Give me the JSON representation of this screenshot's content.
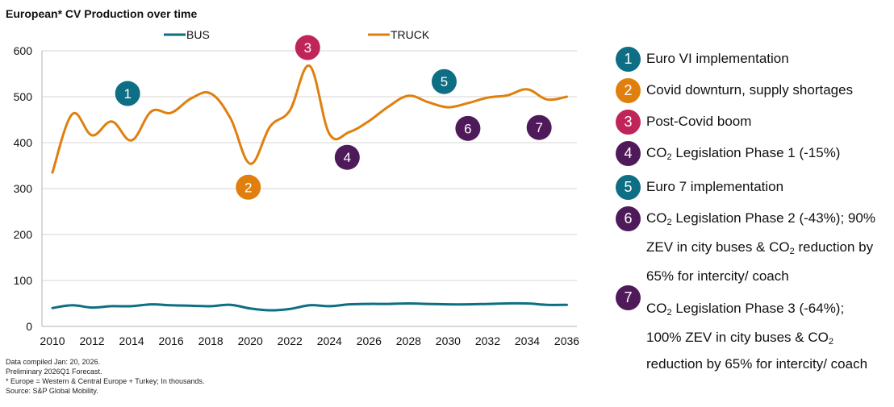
{
  "chart_data": {
    "type": "line",
    "title": "European* CV Production over time",
    "xlabel": "",
    "ylabel": "",
    "ylim": [
      0,
      600
    ],
    "yticks": [
      0,
      100,
      200,
      300,
      400,
      500,
      600
    ],
    "xlim": [
      2010,
      2036
    ],
    "xticks": [
      2010,
      2012,
      2014,
      2016,
      2018,
      2020,
      2022,
      2024,
      2026,
      2028,
      2030,
      2032,
      2034,
      2036
    ],
    "grid": true,
    "legend_position": "top",
    "x": [
      2010,
      2011,
      2012,
      2013,
      2014,
      2015,
      2016,
      2017,
      2018,
      2019,
      2020,
      2021,
      2022,
      2023,
      2024,
      2025,
      2026,
      2027,
      2028,
      2029,
      2030,
      2031,
      2032,
      2033,
      2034,
      2035,
      2036
    ],
    "series": [
      {
        "name": "BUS",
        "color": "#0e6e84",
        "values": [
          40,
          46,
          41,
          44,
          44,
          48,
          46,
          45,
          44,
          47,
          39,
          35,
          38,
          46,
          44,
          48,
          49,
          49,
          50,
          49,
          48,
          48,
          49,
          50,
          50,
          47,
          47
        ]
      },
      {
        "name": "TRUCK",
        "color": "#e07f0d",
        "values": [
          335,
          462,
          416,
          446,
          405,
          468,
          465,
          496,
          507,
          453,
          354,
          435,
          470,
          567,
          419,
          423,
          447,
          479,
          502,
          488,
          477,
          486,
          498,
          503,
          516,
          494,
          500
        ]
      }
    ],
    "annotations": [
      {
        "id": "1",
        "x": 2013.8,
        "y": 507,
        "color": "#0e6e84"
      },
      {
        "id": "2",
        "x": 2019.9,
        "y": 303,
        "color": "#e07f0d"
      },
      {
        "id": "3",
        "x": 2022.9,
        "y": 607,
        "color": "#c0255a"
      },
      {
        "id": "4",
        "x": 2024.9,
        "y": 368,
        "color": "#4e1a5a"
      },
      {
        "id": "5",
        "x": 2029.8,
        "y": 533,
        "color": "#0e6e84"
      },
      {
        "id": "6",
        "x": 2031.0,
        "y": 431,
        "color": "#4e1a5a"
      },
      {
        "id": "7",
        "x": 2034.6,
        "y": 433,
        "color": "#4e1a5a"
      }
    ]
  },
  "legend_notes": [
    {
      "id": "1",
      "color": "#0e6e84",
      "lines": [
        "Euro VI implementation"
      ]
    },
    {
      "id": "2",
      "color": "#e07f0d",
      "lines": [
        "Covid downturn, supply shortages"
      ]
    },
    {
      "id": "3",
      "color": "#c0255a",
      "lines": [
        "Post-Covid boom"
      ]
    },
    {
      "id": "4",
      "color": "#4e1a5a",
      "lines": [
        "CO|2| Legislation Phase 1 (-15%)"
      ]
    },
    {
      "id": "5",
      "color": "#0e6e84",
      "lines": [
        "Euro 7 implementation"
      ]
    },
    {
      "id": "6",
      "color": "#4e1a5a",
      "lines": [
        "CO|2| Legislation Phase 2 (-43%); 90%",
        "ZEV in city buses & CO|2| reduction by",
        "65% for intercity/ coach"
      ]
    },
    {
      "id": "7",
      "color": "#4e1a5a",
      "lines": [
        "CO|2| Legislation Phase 3 (-64%);",
        "100% ZEV in city buses & CO|2|",
        "reduction by 65% for intercity/ coach"
      ]
    }
  ],
  "footnotes": [
    "Data compiled Jan: 20, 2026.",
    "Preliminary 2026Q1 Forecast.",
    "* Europe = Western & Central Europe + Turkey; In thousands.",
    "Source: S&P Global Mobility."
  ]
}
